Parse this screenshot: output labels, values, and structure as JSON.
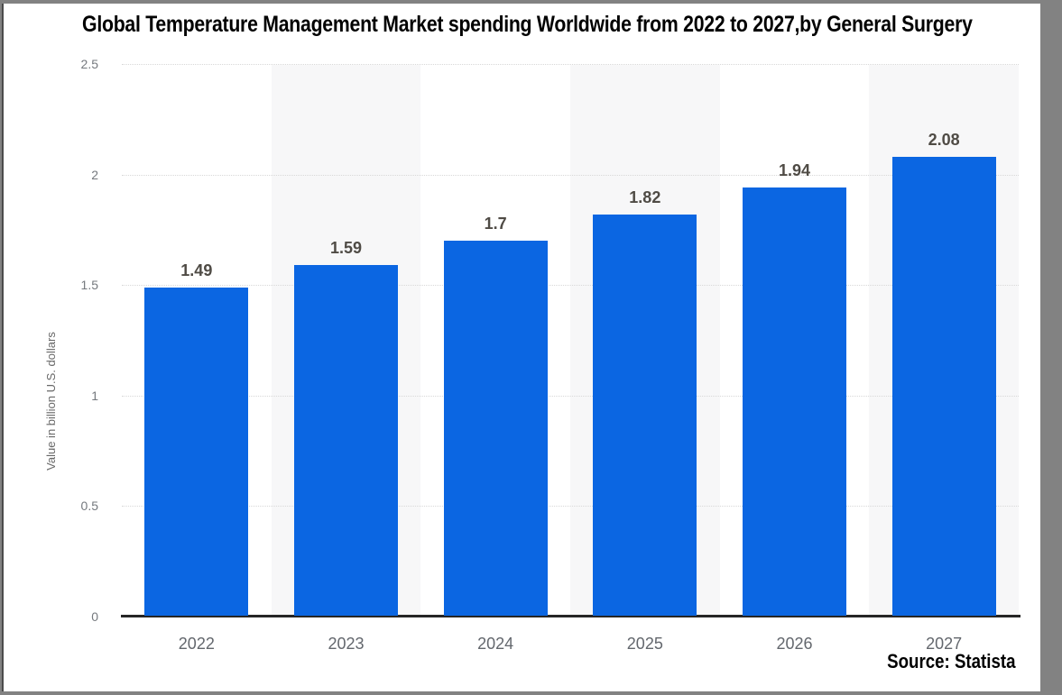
{
  "title": "Global Temperature Management Market spending Worldwide from 2022 to 2027,by General Surgery",
  "source_note": "Source: Statista",
  "y_axis": {
    "label": "Value in billion U.S. dollars"
  },
  "chart_data": {
    "type": "bar",
    "title": "Global Temperature Management Market spending Worldwide from 2022 to 2027,by General Surgery",
    "categories": [
      "2022",
      "2023",
      "2024",
      "2025",
      "2026",
      "2027"
    ],
    "values": [
      1.49,
      1.59,
      1.7,
      1.82,
      1.94,
      2.08
    ],
    "value_labels": [
      "1.49",
      "1.59",
      "1.7",
      "1.82",
      "1.94",
      "2.08"
    ],
    "xlabel": "",
    "ylabel": "Value in billion U.S. dollars",
    "ylim": [
      0,
      2.5
    ],
    "yticks": [
      {
        "v": 0,
        "label": "0"
      },
      {
        "v": 0.5,
        "label": "0.5"
      },
      {
        "v": 1,
        "label": "1"
      },
      {
        "v": 1.5,
        "label": "1.5"
      },
      {
        "v": 2,
        "label": "2"
      },
      {
        "v": 2.5,
        "label": "2.5"
      }
    ],
    "grid": "horizontal-dotted",
    "legend": "none",
    "column_shading": "alternate light gray bands on 2023, 2025, 2027"
  },
  "colors": {
    "bar": "#0b66e2",
    "band": "#f7f7f8",
    "grid": "#d8d8d8",
    "axis_line": "#262626",
    "value_text": "#4f4b45",
    "year_text": "#63676d",
    "tick_text": "#75797e",
    "frame": "#828282",
    "left_edge": "#4b4b4b",
    "background": "#ffffff"
  }
}
